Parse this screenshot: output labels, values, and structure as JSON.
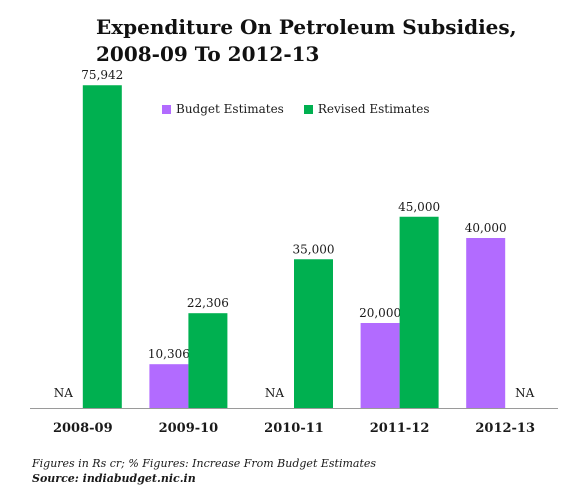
{
  "chart_data": {
    "type": "bar",
    "title_line1": "Expenditure On Petroleum Subsidies,",
    "title_line2": "2008-09 To 2012-13",
    "categories": [
      "2008-09",
      "2009-10",
      "2010-11",
      "2011-12",
      "2012-13"
    ],
    "series": [
      {
        "name": "Budget Estimates",
        "color": "#b26bff",
        "values": [
          null,
          10306,
          null,
          20000,
          40000
        ],
        "labels": [
          "NA",
          "10,306",
          "NA",
          "20,000",
          "40,000"
        ]
      },
      {
        "name": "Revised Estimates",
        "color": "#00b050",
        "values": [
          75942,
          22306,
          35000,
          45000,
          null
        ],
        "labels": [
          "75,942",
          "22,306",
          "35,000",
          "45,000",
          "NA"
        ]
      }
    ],
    "ylim": [
      0,
      80000
    ],
    "grid": false,
    "legend": "top"
  },
  "footnote": "Figures in Rs cr; % Figures: Increase From Budget Estimates",
  "source": "Source: indiabudget.nic.in"
}
